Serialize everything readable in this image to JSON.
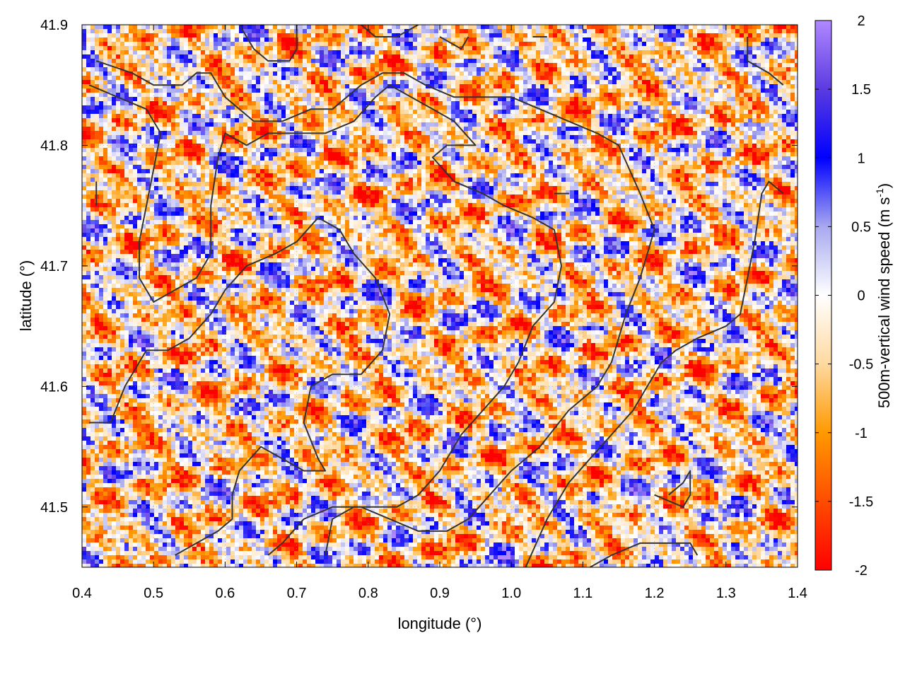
{
  "chart_data": {
    "type": "heatmap",
    "title": "",
    "xlabel": "longitude (°)",
    "ylabel": "latitude (°)",
    "xlim": [
      0.4,
      1.4
    ],
    "ylim": [
      41.45,
      41.9
    ],
    "x_ticks": [
      "0.4",
      "0.5",
      "0.6",
      "0.7",
      "0.8",
      "0.9",
      "1.0",
      "1.1",
      "1.2",
      "1.3",
      "1.4"
    ],
    "y_ticks": [
      "41.5",
      "41.6",
      "41.7",
      "41.8",
      "41.9"
    ],
    "grid": true,
    "colorbar": {
      "label_prefix": "500m-vertical wind speed (m s",
      "label_exp": "-1",
      "label_suffix": ")",
      "range": [
        -2,
        2
      ],
      "ticks": [
        "2",
        "1.5",
        "1",
        "0.5",
        "0",
        "-0.5",
        "-1",
        "-1.5",
        "-2"
      ],
      "stops": [
        {
          "value": -2.0,
          "color": "#ff0000"
        },
        {
          "value": -1.0,
          "color": "#ff9900"
        },
        {
          "value": -0.5,
          "color": "#ffd9a0"
        },
        {
          "value": 0.0,
          "color": "#ffffff"
        },
        {
          "value": 0.5,
          "color": "#a8a8f0"
        },
        {
          "value": 1.0,
          "color": "#0000ff"
        },
        {
          "value": 1.5,
          "color": "#5b3be0"
        },
        {
          "value": 2.0,
          "color": "#b088ff"
        }
      ]
    },
    "contour_color": "#333333",
    "contours": [
      [
        [
          0.42,
          41.87
        ],
        [
          0.47,
          41.86
        ],
        [
          0.5,
          41.85
        ],
        [
          0.54,
          41.85
        ],
        [
          0.56,
          41.86
        ],
        [
          0.58,
          41.86
        ],
        [
          0.6,
          41.84
        ],
        [
          0.62,
          41.83
        ],
        [
          0.64,
          41.82
        ],
        [
          0.68,
          41.82
        ],
        [
          0.72,
          41.83
        ],
        [
          0.75,
          41.83
        ],
        [
          0.77,
          41.84
        ],
        [
          0.79,
          41.85
        ],
        [
          0.82,
          41.86
        ],
        [
          0.85,
          41.86
        ],
        [
          0.88,
          41.85
        ],
        [
          0.92,
          41.84
        ],
        [
          0.96,
          41.84
        ],
        [
          1.0,
          41.84
        ],
        [
          1.04,
          41.83
        ],
        [
          1.08,
          41.82
        ],
        [
          1.12,
          41.81
        ],
        [
          1.15,
          41.8
        ],
        [
          1.18,
          41.76
        ],
        [
          1.2,
          41.73
        ],
        [
          1.18,
          41.69
        ],
        [
          1.16,
          41.66
        ],
        [
          1.14,
          41.62
        ],
        [
          1.12,
          41.6
        ],
        [
          1.08,
          41.58
        ],
        [
          1.04,
          41.55
        ],
        [
          1.0,
          41.53
        ],
        [
          0.97,
          41.51
        ],
        [
          0.94,
          41.49
        ],
        [
          0.91,
          41.48
        ],
        [
          0.87,
          41.48
        ],
        [
          0.83,
          41.49
        ],
        [
          0.79,
          41.5
        ],
        [
          0.75,
          41.5
        ],
        [
          0.71,
          41.49
        ],
        [
          0.68,
          41.47
        ],
        [
          0.66,
          41.46
        ]
      ],
      [
        [
          0.41,
          41.85
        ],
        [
          0.45,
          41.84
        ],
        [
          0.49,
          41.83
        ],
        [
          0.51,
          41.81
        ],
        [
          0.5,
          41.78
        ],
        [
          0.49,
          41.75
        ],
        [
          0.48,
          41.72
        ],
        [
          0.48,
          41.69
        ],
        [
          0.5,
          41.67
        ],
        [
          0.53,
          41.68
        ],
        [
          0.56,
          41.69
        ],
        [
          0.58,
          41.71
        ],
        [
          0.58,
          41.75
        ],
        [
          0.59,
          41.79
        ],
        [
          0.6,
          41.81
        ],
        [
          0.63,
          41.8
        ],
        [
          0.66,
          41.81
        ],
        [
          0.7,
          41.81
        ],
        [
          0.74,
          41.81
        ],
        [
          0.78,
          41.82
        ],
        [
          0.81,
          41.84
        ],
        [
          0.83,
          41.85
        ],
        [
          0.86,
          41.84
        ],
        [
          0.89,
          41.83
        ],
        [
          0.92,
          41.82
        ],
        [
          0.95,
          41.8
        ],
        [
          0.91,
          41.8
        ],
        [
          0.89,
          41.79
        ],
        [
          0.92,
          41.77
        ],
        [
          0.96,
          41.76
        ],
        [
          0.99,
          41.75
        ],
        [
          1.03,
          41.74
        ],
        [
          1.06,
          41.73
        ],
        [
          1.07,
          41.7
        ],
        [
          1.06,
          41.67
        ],
        [
          1.03,
          41.65
        ],
        [
          1.01,
          41.62
        ],
        [
          0.99,
          41.6
        ],
        [
          0.96,
          41.58
        ],
        [
          0.93,
          41.56
        ],
        [
          0.9,
          41.53
        ],
        [
          0.87,
          41.51
        ],
        [
          0.84,
          41.5
        ],
        [
          0.81,
          41.5
        ],
        [
          0.78,
          41.5
        ],
        [
          0.75,
          41.49
        ],
        [
          0.74,
          41.46
        ]
      ],
      [
        [
          0.41,
          41.57
        ],
        [
          0.44,
          41.57
        ],
        [
          0.46,
          41.6
        ],
        [
          0.49,
          41.63
        ],
        [
          0.52,
          41.63
        ],
        [
          0.55,
          41.64
        ],
        [
          0.58,
          41.66
        ],
        [
          0.6,
          41.68
        ],
        [
          0.63,
          41.7
        ],
        [
          0.67,
          41.71
        ],
        [
          0.7,
          41.72
        ],
        [
          0.73,
          41.74
        ],
        [
          0.76,
          41.73
        ],
        [
          0.78,
          41.71
        ],
        [
          0.81,
          41.69
        ],
        [
          0.83,
          41.66
        ],
        [
          0.82,
          41.63
        ],
        [
          0.79,
          41.61
        ],
        [
          0.75,
          41.61
        ],
        [
          0.72,
          41.6
        ],
        [
          0.71,
          41.57
        ],
        [
          0.73,
          41.54
        ],
        [
          0.74,
          41.53
        ],
        [
          0.71,
          41.53
        ],
        [
          0.68,
          41.54
        ],
        [
          0.65,
          41.55
        ],
        [
          0.62,
          41.53
        ],
        [
          0.61,
          41.51
        ],
        [
          0.61,
          41.49
        ],
        [
          0.59,
          41.48
        ],
        [
          0.56,
          41.47
        ],
        [
          0.53,
          41.46
        ]
      ],
      [
        [
          0.62,
          41.9
        ],
        [
          0.64,
          41.88
        ],
        [
          0.66,
          41.87
        ],
        [
          0.69,
          41.87
        ],
        [
          0.7,
          41.88
        ],
        [
          0.7,
          41.9
        ]
      ],
      [
        [
          0.79,
          41.9
        ],
        [
          0.81,
          41.89
        ],
        [
          0.84,
          41.89
        ],
        [
          0.87,
          41.9
        ]
      ],
      [
        [
          0.9,
          41.89
        ],
        [
          0.93,
          41.88
        ],
        [
          0.94,
          41.89
        ]
      ],
      [
        [
          1.03,
          41.89
        ],
        [
          1.05,
          41.89
        ]
      ],
      [
        [
          1.33,
          41.89
        ],
        [
          1.33,
          41.87
        ],
        [
          1.36,
          41.86
        ],
        [
          1.38,
          41.85
        ]
      ],
      [
        [
          1.02,
          41.45
        ],
        [
          1.05,
          41.49
        ],
        [
          1.08,
          41.52
        ],
        [
          1.11,
          41.54
        ],
        [
          1.14,
          41.56
        ],
        [
          1.17,
          41.58
        ],
        [
          1.19,
          41.6
        ],
        [
          1.21,
          41.62
        ],
        [
          1.23,
          41.63
        ],
        [
          1.26,
          41.64
        ],
        [
          1.3,
          41.65
        ],
        [
          1.32,
          41.66
        ],
        [
          1.33,
          41.69
        ],
        [
          1.34,
          41.72
        ],
        [
          1.35,
          41.76
        ],
        [
          1.36,
          41.77
        ],
        [
          1.38,
          41.76
        ]
      ],
      [
        [
          1.2,
          41.51
        ],
        [
          1.24,
          41.5
        ],
        [
          1.25,
          41.51
        ],
        [
          1.25,
          41.53
        ],
        [
          1.24,
          41.52
        ],
        [
          1.22,
          41.51
        ]
      ],
      [
        [
          1.11,
          41.45
        ],
        [
          1.14,
          41.46
        ],
        [
          1.18,
          41.47
        ],
        [
          1.22,
          41.47
        ],
        [
          1.25,
          41.47
        ],
        [
          1.26,
          41.46
        ]
      ],
      [
        [
          0.42,
          41.77
        ],
        [
          0.42,
          41.75
        ]
      ],
      [
        [
          1.06,
          41.76
        ],
        [
          1.08,
          41.76
        ],
        [
          1.06,
          41.76
        ]
      ]
    ]
  }
}
